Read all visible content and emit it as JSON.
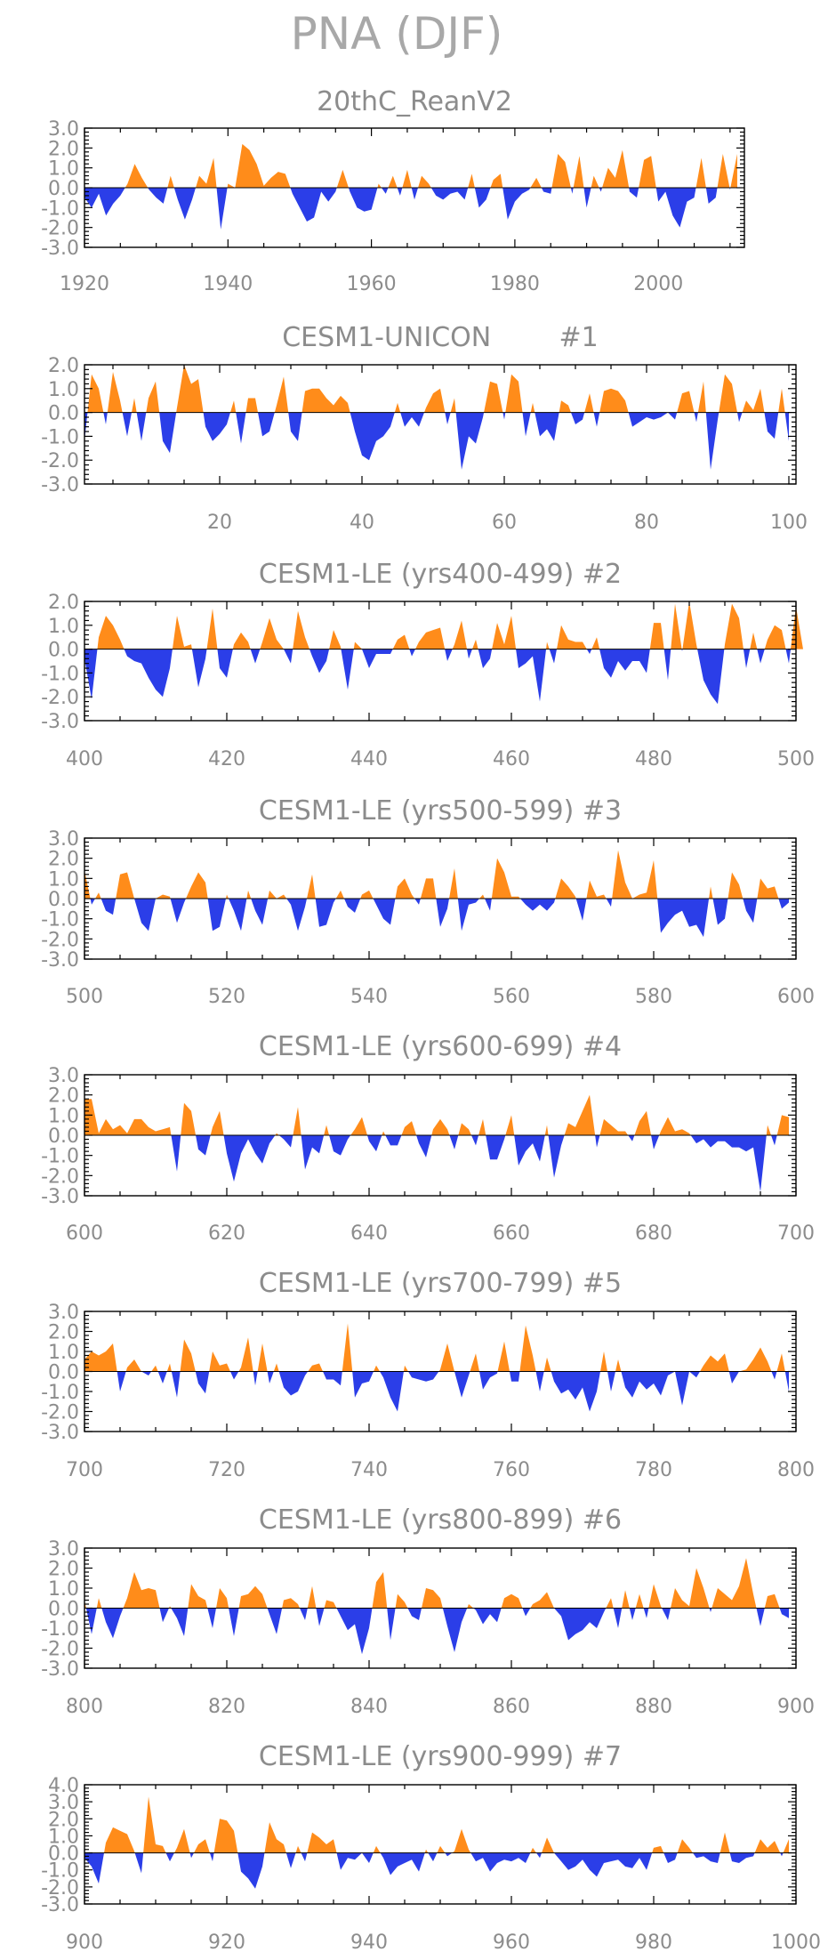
{
  "title": "PNA (DJF)",
  "colors": {
    "positive": "#ff8c1a",
    "negative": "#2b3ee8",
    "axis": "#000000",
    "text": "#8c8c8c"
  },
  "chart_data": [
    {
      "type": "area",
      "title": "20thC_ReanV2",
      "xlim": [
        1920,
        2012
      ],
      "ylim": [
        -3,
        3
      ],
      "xticks": [
        1920,
        1940,
        1960,
        1980,
        2000
      ],
      "yticks": [
        "3.0",
        "2.0",
        "1.0",
        "0.0",
        "-1.0",
        "-2.0",
        "-3.0"
      ],
      "x_start": 1920,
      "values": [
        -0.5,
        -1.0,
        -0.3,
        -1.4,
        -0.8,
        -0.4,
        0.2,
        1.2,
        0.5,
        -0.1,
        -0.5,
        -0.8,
        0.6,
        -0.6,
        -1.6,
        -0.6,
        0.6,
        0.2,
        1.5,
        -2.1,
        0.2,
        0.0,
        2.2,
        1.9,
        1.2,
        0.1,
        0.5,
        0.8,
        0.7,
        -0.3,
        -1.0,
        -1.7,
        -1.5,
        -0.2,
        -0.7,
        -0.2,
        0.9,
        -0.2,
        -1.0,
        -1.2,
        -1.1,
        0.2,
        -0.3,
        0.6,
        -0.4,
        0.9,
        -0.6,
        0.6,
        0.2,
        -0.4,
        -0.6,
        -0.3,
        -0.2,
        -0.6,
        0.7,
        -1.0,
        -0.6,
        0.4,
        0.7,
        -1.6,
        -0.7,
        -0.3,
        -0.1,
        0.5,
        -0.2,
        -0.3,
        1.7,
        1.3,
        -0.3,
        1.6,
        -1.0,
        0.6,
        -0.2,
        1.0,
        0.5,
        1.9,
        -0.2,
        -0.5,
        1.4,
        1.6,
        -0.7,
        -0.2,
        -1.4,
        -2.0,
        -0.7,
        -0.5,
        1.5,
        -0.8,
        -0.5,
        1.7,
        -0.1,
        1.7
      ],
      "ylabels": ""
    },
    {
      "type": "area",
      "title": "CESM1-UNICON        #1",
      "xlim": [
        1,
        101
      ],
      "ylim": [
        -3,
        2
      ],
      "xticks": [
        20,
        40,
        60,
        80,
        100
      ],
      "yticks": [
        "2.0",
        "1.0",
        "0.0",
        "-1.0",
        "-2.0",
        "-3.0"
      ],
      "x_start": 1,
      "values": [
        -1.2,
        1.6,
        1.0,
        -0.5,
        1.7,
        0.5,
        -1.0,
        0.6,
        -1.2,
        0.6,
        1.3,
        -1.2,
        -1.7,
        0.2,
        2.0,
        1.2,
        1.4,
        -0.6,
        -1.2,
        -0.9,
        -0.5,
        0.5,
        -1.3,
        0.6,
        0.6,
        -1.0,
        -0.8,
        0.3,
        1.5,
        -0.8,
        -1.2,
        0.9,
        1.0,
        1.0,
        0.6,
        0.3,
        0.7,
        0.4,
        -0.8,
        -1.8,
        -2.0,
        -1.2,
        -1.0,
        -0.6,
        0.4,
        -0.6,
        -0.2,
        -0.6,
        0.2,
        0.8,
        1.0,
        -0.5,
        0.6,
        -2.4,
        -1.0,
        -1.3,
        -0.2,
        1.3,
        1.2,
        -0.3,
        1.6,
        1.3,
        -1.0,
        0.4,
        -1.0,
        -0.7,
        -1.2,
        0.5,
        0.3,
        -0.5,
        -0.3,
        0.8,
        -0.6,
        0.9,
        1.0,
        0.9,
        0.5,
        -0.6,
        -0.4,
        -0.2,
        -0.3,
        -0.2,
        0.0,
        -0.3,
        0.8,
        0.9,
        -0.4,
        1.3,
        -2.4,
        -0.3,
        1.6,
        1.2,
        -0.4,
        0.5,
        0.1,
        1.0,
        -0.8,
        -1.1,
        1.0,
        -1.2
      ],
      "ylabels": ""
    },
    {
      "type": "area",
      "title": "CESM1-LE (yrs400-499) #2",
      "xlim": [
        400,
        500
      ],
      "ylim": [
        -3,
        2
      ],
      "xticks": [
        400,
        420,
        440,
        460,
        480,
        500
      ],
      "yticks": [
        "2.0",
        "1.0",
        "0.0",
        "-1.0",
        "-2.0",
        "-3.0"
      ],
      "x_start": 400,
      "values": [
        -0.4,
        -2.1,
        0.5,
        1.4,
        1.0,
        0.4,
        -0.3,
        -0.5,
        -0.6,
        -1.2,
        -1.7,
        -2.0,
        -0.8,
        1.4,
        0.1,
        0.2,
        -1.6,
        -0.4,
        1.7,
        -0.8,
        -1.2,
        0.2,
        0.7,
        0.3,
        -0.6,
        0.3,
        1.3,
        0.4,
        0.0,
        -0.6,
        1.6,
        0.5,
        -0.3,
        -1.0,
        -0.5,
        0.8,
        0.1,
        -1.7,
        0.3,
        0.0,
        -0.8,
        -0.2,
        -0.2,
        -0.2,
        0.4,
        0.6,
        -0.3,
        0.3,
        0.7,
        0.8,
        0.9,
        -0.5,
        0.2,
        1.2,
        -0.4,
        0.4,
        -0.8,
        -0.4,
        1.1,
        0.2,
        1.4,
        -0.8,
        -0.6,
        -0.3,
        -2.2,
        0.3,
        -0.6,
        1.0,
        0.4,
        0.3,
        0.3,
        -0.2,
        0.5,
        -0.8,
        -1.2,
        -0.5,
        -0.9,
        -0.5,
        -0.5,
        -1.0,
        1.1,
        1.1,
        -1.3,
        1.9,
        -0.1,
        2.0,
        0.2,
        -1.3,
        -1.9,
        -2.3,
        0.2,
        1.9,
        1.3,
        -0.8,
        0.7,
        -0.6,
        0.4,
        1.0,
        0.8,
        -0.6,
        1.8,
        0.0
      ],
      "ylabels": ""
    },
    {
      "type": "area",
      "title": "CESM1-LE (yrs500-599) #3",
      "xlim": [
        500,
        600
      ],
      "ylim": [
        -3,
        3
      ],
      "xticks": [
        500,
        520,
        540,
        560,
        580,
        600
      ],
      "yticks": [
        "3.0",
        "2.0",
        "1.0",
        "0.0",
        "-1.0",
        "-2.0",
        "-3.0"
      ],
      "x_start": 500,
      "values": [
        1.4,
        -0.3,
        0.3,
        -0.6,
        -0.8,
        1.2,
        1.3,
        0.0,
        -1.2,
        -1.6,
        0.0,
        0.2,
        0.1,
        -1.2,
        -0.2,
        0.6,
        1.3,
        0.8,
        -1.6,
        -1.4,
        0.2,
        -0.6,
        -1.6,
        0.4,
        -0.6,
        -1.3,
        0.4,
        0.0,
        0.2,
        -0.3,
        -1.6,
        -0.4,
        1.2,
        -1.4,
        -1.3,
        -0.2,
        0.4,
        -0.4,
        -0.7,
        0.2,
        0.4,
        -0.3,
        -1.0,
        -1.3,
        0.6,
        1.0,
        0.2,
        -0.3,
        1.0,
        1.0,
        -1.4,
        -0.5,
        1.5,
        -1.6,
        -0.3,
        -0.2,
        0.2,
        -0.6,
        2.0,
        1.3,
        0.1,
        0.1,
        -0.3,
        -0.6,
        -0.3,
        -0.6,
        -0.2,
        1.0,
        0.6,
        0.1,
        -1.1,
        0.9,
        0.1,
        0.2,
        -0.4,
        2.4,
        0.8,
        0.0,
        0.2,
        0.3,
        1.9,
        -1.7,
        -1.2,
        -0.8,
        -0.6,
        -1.4,
        -1.3,
        -1.9,
        0.6,
        -1.3,
        -1.0,
        1.3,
        0.7,
        -0.6,
        -1.2,
        1.0,
        0.5,
        0.6,
        -0.5,
        -0.2
      ],
      "ylabels": ""
    },
    {
      "type": "area",
      "title": "CESM1-LE (yrs600-699) #4",
      "xlim": [
        600,
        700
      ],
      "ylim": [
        -3,
        3
      ],
      "xticks": [
        600,
        620,
        640,
        660,
        680,
        700
      ],
      "yticks": [
        "3.0",
        "2.0",
        "1.0",
        "0.0",
        "-1.0",
        "-2.0",
        "-3.0"
      ],
      "x_start": 600,
      "values": [
        1.8,
        1.8,
        0.1,
        0.8,
        0.3,
        0.5,
        0.1,
        0.8,
        0.8,
        0.4,
        0.2,
        0.3,
        0.4,
        -1.8,
        1.6,
        1.2,
        -0.7,
        -1.0,
        0.4,
        1.2,
        -0.9,
        -2.3,
        -0.9,
        -0.2,
        -0.9,
        -1.4,
        -0.4,
        0.1,
        -0.2,
        -0.6,
        1.4,
        -1.7,
        -0.6,
        -0.9,
        0.5,
        -0.8,
        -1.0,
        -0.2,
        0.3,
        0.9,
        -0.3,
        -0.8,
        0.2,
        -0.5,
        -0.5,
        0.4,
        0.7,
        -0.4,
        -1.1,
        0.3,
        0.8,
        0.3,
        -0.7,
        0.6,
        0.3,
        -0.5,
        0.8,
        -1.2,
        -1.2,
        -0.2,
        1.0,
        -1.5,
        -0.8,
        -0.4,
        -1.3,
        0.5,
        -2.1,
        -0.5,
        0.6,
        0.4,
        1.2,
        2.0,
        -0.6,
        0.8,
        0.5,
        0.2,
        0.2,
        -0.3,
        0.7,
        1.2,
        -0.7,
        0.2,
        0.9,
        0.2,
        0.3,
        0.1,
        -0.4,
        -0.2,
        -0.6,
        -0.3,
        -0.3,
        -0.6,
        -0.6,
        -0.8,
        -0.6,
        -2.8,
        0.5,
        -0.5,
        1.0,
        0.9
      ],
      "ylabels": ""
    },
    {
      "type": "area",
      "title": "CESM1-LE (yrs700-799) #5",
      "xlim": [
        700,
        800
      ],
      "ylim": [
        -3,
        3
      ],
      "xticks": [
        700,
        720,
        740,
        760,
        780,
        800
      ],
      "yticks": [
        "3.0",
        "2.0",
        "1.0",
        "0.0",
        "-1.0",
        "-2.0",
        "-3.0"
      ],
      "x_start": 700,
      "values": [
        0.6,
        1.0,
        0.8,
        1.0,
        1.4,
        -1.0,
        0.2,
        0.6,
        0.0,
        -0.2,
        0.3,
        -0.6,
        0.4,
        -1.3,
        1.6,
        0.9,
        -0.6,
        -1.1,
        1.0,
        0.3,
        0.4,
        -0.4,
        0.2,
        1.7,
        -0.7,
        1.4,
        -0.6,
        0.4,
        -0.8,
        -1.2,
        -1.0,
        -0.2,
        0.3,
        0.4,
        -0.4,
        -0.4,
        -0.7,
        2.4,
        -1.3,
        -0.6,
        -0.5,
        0.3,
        -0.3,
        -1.3,
        -2.0,
        0.3,
        -0.3,
        -0.4,
        -0.5,
        -0.4,
        0.1,
        1.4,
        0.0,
        -1.3,
        -0.2,
        0.9,
        -0.9,
        -0.3,
        -0.1,
        1.5,
        -0.5,
        -0.5,
        2.3,
        0.8,
        -1.0,
        0.7,
        -0.5,
        -1.1,
        -0.9,
        -1.4,
        -0.8,
        -2.0,
        -1.0,
        1.0,
        -1.0,
        0.6,
        -0.8,
        -1.3,
        -0.5,
        -0.9,
        -0.6,
        -1.2,
        -0.2,
        0.0,
        -1.7,
        0.0,
        -0.3,
        0.3,
        0.8,
        0.5,
        0.9,
        -0.6,
        0.0,
        0.1,
        0.6,
        1.2,
        0.5,
        -0.4,
        0.9,
        -1.0
      ],
      "ylabels": ""
    },
    {
      "type": "area",
      "title": "CESM1-LE (yrs800-899) #6",
      "xlim": [
        800,
        900
      ],
      "ylim": [
        -3,
        3
      ],
      "xticks": [
        800,
        820,
        840,
        860,
        880,
        900
      ],
      "yticks": [
        "3.0",
        "2.0",
        "1.0",
        "0.0",
        "-1.0",
        "-2.0",
        "-3.0"
      ],
      "x_start": 800,
      "values": [
        0.4,
        -1.3,
        0.5,
        -0.7,
        -1.5,
        -0.4,
        0.5,
        1.8,
        0.9,
        1.0,
        0.9,
        -0.7,
        0.1,
        -0.5,
        -1.4,
        1.2,
        0.6,
        0.4,
        -1.0,
        1.0,
        0.5,
        -1.4,
        0.6,
        0.7,
        1.1,
        0.7,
        -0.3,
        -1.3,
        0.4,
        0.5,
        0.2,
        -0.6,
        1.1,
        -0.9,
        0.4,
        0.3,
        -0.4,
        -1.1,
        -0.8,
        -2.3,
        -1.0,
        1.3,
        1.8,
        -1.6,
        0.7,
        0.3,
        -0.4,
        -0.6,
        1.0,
        0.9,
        0.5,
        -0.9,
        -2.2,
        -0.7,
        0.2,
        -0.1,
        -0.8,
        -0.3,
        -0.7,
        0.5,
        0.7,
        0.5,
        -0.4,
        0.2,
        0.4,
        0.8,
        0.0,
        -0.4,
        -1.6,
        -1.3,
        -1.1,
        -0.7,
        -1.0,
        -0.2,
        0.5,
        -1.0,
        0.9,
        -0.6,
        0.7,
        -0.5,
        1.2,
        0.1,
        -0.6,
        1.0,
        0.4,
        0.1,
        2.0,
        1.0,
        -0.2,
        1.0,
        0.7,
        0.4,
        1.1,
        2.5,
        0.7,
        -0.9,
        0.6,
        0.7,
        -0.3,
        -0.5
      ],
      "ylabels": ""
    },
    {
      "type": "area",
      "title": "CESM1-LE (yrs900-999) #7",
      "xlim": [
        900,
        1000
      ],
      "ylim": [
        -3,
        4
      ],
      "xticks": [
        900,
        920,
        940,
        960,
        980,
        1000
      ],
      "yticks": [
        "4.0",
        "3.0",
        "2.0",
        "1.0",
        "0.0",
        "-1.0",
        "-2.0",
        "-3.0"
      ],
      "x_start": 900,
      "values": [
        -0.3,
        -0.8,
        -1.8,
        0.6,
        1.5,
        1.3,
        1.1,
        0.1,
        -1.2,
        3.3,
        0.5,
        0.4,
        -0.5,
        0.3,
        1.4,
        -0.3,
        0.5,
        0.8,
        -0.5,
        2.0,
        1.9,
        1.3,
        -1.1,
        -1.5,
        -2.1,
        -0.8,
        1.8,
        0.8,
        0.5,
        -0.9,
        0.4,
        -0.5,
        1.2,
        0.9,
        0.5,
        0.8,
        -1.0,
        -0.3,
        -0.4,
        0.0,
        -0.6,
        0.4,
        -0.3,
        -1.3,
        -0.8,
        -0.6,
        -0.4,
        -1.1,
        0.2,
        -0.5,
        0.4,
        -0.2,
        0.1,
        1.4,
        0.2,
        -0.5,
        -0.3,
        -1.1,
        -0.6,
        -0.4,
        -0.5,
        -0.3,
        -0.6,
        0.3,
        -0.3,
        0.9,
        0.0,
        -0.5,
        -1.0,
        -0.8,
        -0.4,
        -1.0,
        -1.4,
        -0.6,
        -0.5,
        -0.4,
        -0.8,
        -0.9,
        -0.3,
        -1.0,
        0.3,
        0.4,
        -0.6,
        -0.4,
        0.8,
        0.3,
        -0.3,
        -0.2,
        -0.5,
        -0.6,
        1.2,
        -0.5,
        -0.6,
        -0.3,
        -0.2,
        0.8,
        0.3,
        0.7,
        -0.2,
        0.8
      ],
      "ylabels": ""
    }
  ]
}
